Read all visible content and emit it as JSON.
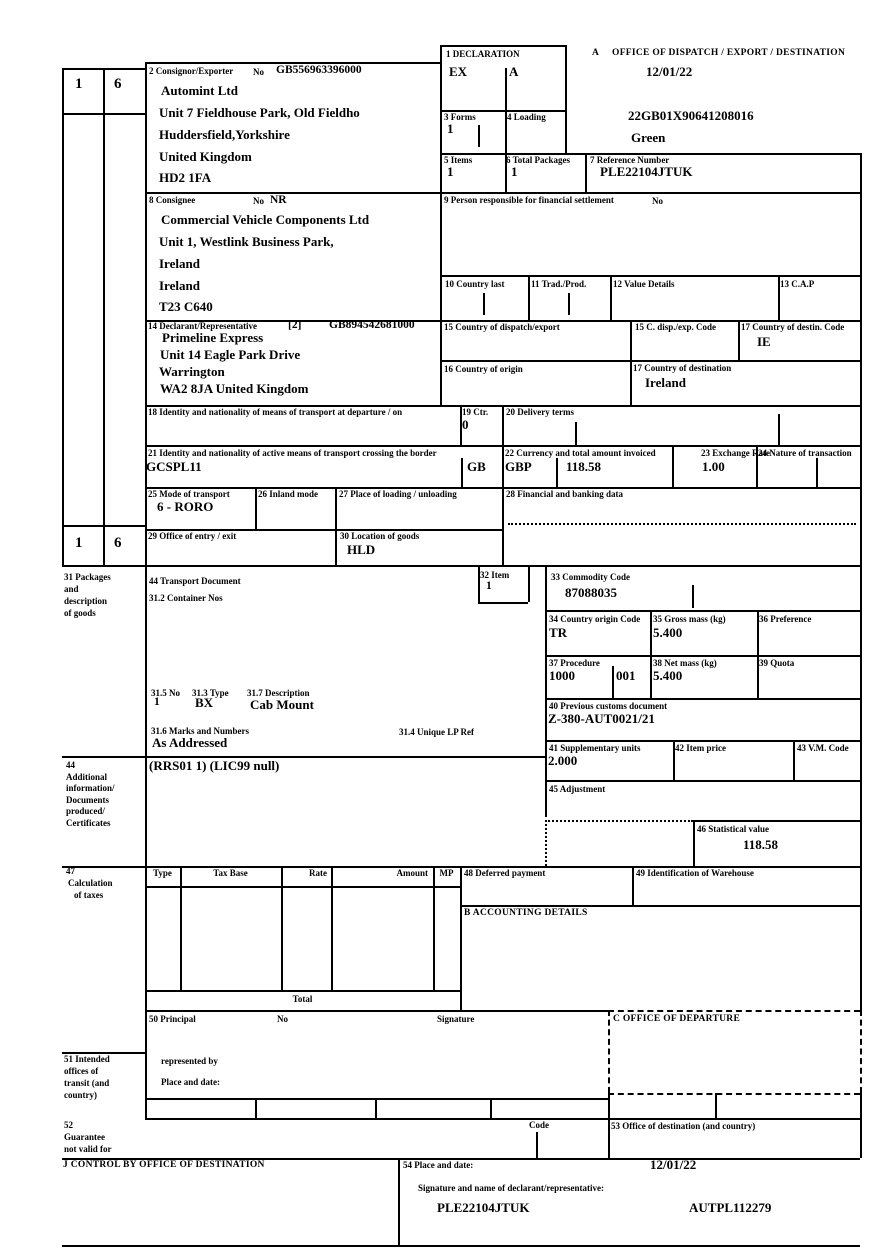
{
  "form": {
    "copy": {
      "c1": "1",
      "c2": "6"
    },
    "d1": {
      "label": "1 DECLARATION",
      "left": "EX",
      "right": "A"
    },
    "officeA": {
      "prefix": "A",
      "label": "OFFICE OF DISPATCH / EXPORT / DESTINATION",
      "date": "12/01/22",
      "mrn": "22GB01X90641208016",
      "routing": "Green"
    },
    "b2": {
      "label": "2 Consignor/Exporter",
      "no_label": "No",
      "no": "GB556963396000",
      "lines": [
        "Automint Ltd",
        "Unit 7 Fieldhouse Park, Old Fieldho",
        "Huddersfield,Yorkshire",
        "United Kingdom",
        "HD2 1FA"
      ]
    },
    "b3": {
      "label": "3 Forms",
      "value": "1"
    },
    "b4": {
      "label": "4 Loading"
    },
    "b5": {
      "label": "5 Items",
      "value": "1"
    },
    "b6": {
      "label": "6 Total Packages",
      "value": "1"
    },
    "b7": {
      "label": "7 Reference Number",
      "value": "PLE22104JTUK"
    },
    "b8": {
      "label": "8 Consignee",
      "no_label": "No",
      "no": "NR",
      "lines": [
        "Commercial Vehicle Components Ltd",
        "Unit 1, Westlink Business Park,",
        "Ireland",
        "Ireland",
        "T23 C640"
      ]
    },
    "b9": {
      "label": "9 Person responsible for financial settlement",
      "no_label": "No"
    },
    "b10": {
      "label": "10 Country last"
    },
    "b11": {
      "label": "11 Trad./Prod."
    },
    "b12": {
      "label": "12 Value Details"
    },
    "b13": {
      "label": "13 C.A.P"
    },
    "b14": {
      "label": "14 Declarant/Representative",
      "code": "[2]",
      "no": "GB894542681000",
      "lines": [
        "Primeline Express",
        "Unit 14 Eagle Park Drive",
        "Warrington",
        "WA2 8JA United Kingdom"
      ]
    },
    "b15": {
      "label": "15 Country of dispatch/export"
    },
    "b15c": {
      "label": "15 C. disp./exp. Code"
    },
    "b17c": {
      "label": "17 Country of destin. Code",
      "value": "IE"
    },
    "b16": {
      "label": "16 Country of origin"
    },
    "b17": {
      "label": "17 Country of destination",
      "value": "Ireland"
    },
    "b18": {
      "label": "18 Identity and nationality of means of transport at departure / on"
    },
    "b19": {
      "label": "19 Ctr.",
      "value": "0"
    },
    "b20": {
      "label": "20 Delivery terms"
    },
    "b21": {
      "label": "21 Identity and nationality of active means of transport crossing the border",
      "value": "GCSPL11",
      "nationality": "GB"
    },
    "b22": {
      "label": "22 Currency and total amount invoiced",
      "currency": "GBP",
      "amount": "118.58"
    },
    "b23": {
      "label": "23 Exchange Rate",
      "value": "1.00"
    },
    "b24": {
      "label": "24 Nature of transaction"
    },
    "b25": {
      "label": "25 Mode of transport",
      "value": "6 - RORO"
    },
    "b26": {
      "label": "26 Inland mode"
    },
    "b27": {
      "label": "27 Place of loading / unloading"
    },
    "b28": {
      "label": "28 Financial and banking data"
    },
    "b29": {
      "label": "29 Office of entry / exit"
    },
    "b30": {
      "label": "30 Location of goods",
      "value": "HLD"
    },
    "b31": {
      "lines": [
        "31 Packages",
        "and",
        "description",
        "of goods"
      ]
    },
    "b44doc": {
      "label": "44 Transport Document"
    },
    "b31_2": {
      "label": "31.2 Container Nos"
    },
    "b32": {
      "label": "32 Item",
      "value": "1"
    },
    "b33": {
      "label": "33 Commodity Code",
      "value": "87088035"
    },
    "b34": {
      "label": "34 Country origin Code",
      "value": "TR"
    },
    "b35": {
      "label": "35 Gross mass (kg)",
      "value": "5.400"
    },
    "b36": {
      "label": "36 Preference"
    },
    "b37": {
      "label": "37 Procedure",
      "value1": "1000",
      "value2": "001"
    },
    "b38": {
      "label": "38 Net mass (kg)",
      "value": "5.400"
    },
    "b39": {
      "label": "39 Quota"
    },
    "b40": {
      "label": "40 Previous customs document",
      "value": "Z-380-AUT0021/21"
    },
    "b41": {
      "label": "41 Supplementary units",
      "value": "2.000"
    },
    "b42": {
      "label": "42 Item price"
    },
    "b43": {
      "label": "43 V.M. Code"
    },
    "b45": {
      "label": "45 Adjustment"
    },
    "b31_5": {
      "label": "31.5 No",
      "value": "1"
    },
    "b31_3": {
      "label": "31.3 Type",
      "value": "BX"
    },
    "b31_7": {
      "label": "31.7 Description",
      "value": "Cab Mount"
    },
    "b31_6": {
      "label": "31.6 Marks and Numbers",
      "value": "As Addressed"
    },
    "b31_4": {
      "label": "31.4 Unique LP Ref"
    },
    "b44": {
      "lines": [
        "44",
        "Additional",
        "information/",
        "Documents",
        "produced/",
        "Certificates"
      ],
      "value": "(RRS01 1) (LIC99 null)"
    },
    "b46": {
      "label": "46 Statistical value",
      "value": "118.58"
    },
    "b47": {
      "lines": [
        "47",
        "Calculation",
        "of taxes"
      ],
      "headers": [
        "Type",
        "Tax Base",
        "Rate",
        "Amount",
        "MP"
      ],
      "total_label": "Total"
    },
    "b48": {
      "label": "48 Deferred payment"
    },
    "b49": {
      "label": "49 Identification of Warehouse"
    },
    "bB": {
      "label": "B ACCOUNTING DETAILS"
    },
    "b50": {
      "label": "50 Principal",
      "no_label": "No",
      "sig_label": "Signature",
      "rep": "represented by",
      "place": "Place and date:"
    },
    "b51": {
      "lines": [
        "51 Intended",
        "offices of",
        "transit (and",
        "country)"
      ]
    },
    "bC": {
      "label": "C OFFICE OF DEPARTURE"
    },
    "b52": {
      "lines": [
        "52",
        "Guarantee",
        "not valid for"
      ],
      "code_label": "Code"
    },
    "b53": {
      "label": "53 Office of destination (and country)"
    },
    "bJ": {
      "label": "J CONTROL BY OFFICE OF DESTINATION"
    },
    "b54": {
      "label": "54 Place and date:",
      "date": "12/01/22",
      "sig_label": "Signature and name of declarant/representative:",
      "reference": "PLE22104JTUK",
      "declarant": "AUTPL112279"
    }
  }
}
